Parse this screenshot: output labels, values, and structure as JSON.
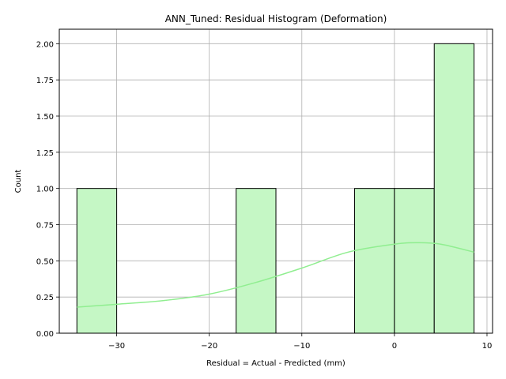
{
  "chart_data": {
    "type": "bar",
    "title": "ANN_Tuned: Residual Histogram (Deformation)",
    "xlabel": "Residual = Actual - Predicted (mm)",
    "ylabel": "Count",
    "xlim": [
      -36.2,
      10.6
    ],
    "ylim": [
      0,
      2.1
    ],
    "grid": true,
    "bar_color": "#c5f7c5",
    "bar_edge_color": "#000000",
    "kde_color": "#90ee90",
    "bins": [
      {
        "x0": -34.3,
        "x1": -30.0,
        "count": 1
      },
      {
        "x0": -30.0,
        "x1": -25.7,
        "count": 0
      },
      {
        "x0": -25.7,
        "x1": -21.4,
        "count": 0
      },
      {
        "x0": -21.4,
        "x1": -17.1,
        "count": 0
      },
      {
        "x0": -17.1,
        "x1": -12.8,
        "count": 1
      },
      {
        "x0": -12.8,
        "x1": -8.6,
        "count": 0
      },
      {
        "x0": -8.6,
        "x1": -4.3,
        "count": 0
      },
      {
        "x0": -4.3,
        "x1": 0.0,
        "count": 1
      },
      {
        "x0": 0.0,
        "x1": 4.3,
        "count": 1
      },
      {
        "x0": 4.3,
        "x1": 8.6,
        "count": 2
      }
    ],
    "kde": {
      "x": [
        -34.3,
        -30,
        -25,
        -20,
        -15,
        -10,
        -5,
        0,
        2.5,
        5,
        8.6
      ],
      "y": [
        0.18,
        0.2,
        0.225,
        0.27,
        0.35,
        0.45,
        0.56,
        0.615,
        0.625,
        0.615,
        0.56
      ]
    },
    "xticks": [
      -30,
      -20,
      -10,
      0,
      10
    ],
    "xtick_labels": [
      "−30",
      "−20",
      "−10",
      "0",
      "10"
    ],
    "yticks": [
      0,
      0.25,
      0.5,
      0.75,
      1.0,
      1.25,
      1.5,
      1.75,
      2.0
    ],
    "ytick_labels": [
      "0.00",
      "0.25",
      "0.50",
      "0.75",
      "1.00",
      "1.25",
      "1.50",
      "1.75",
      "2.00"
    ]
  }
}
